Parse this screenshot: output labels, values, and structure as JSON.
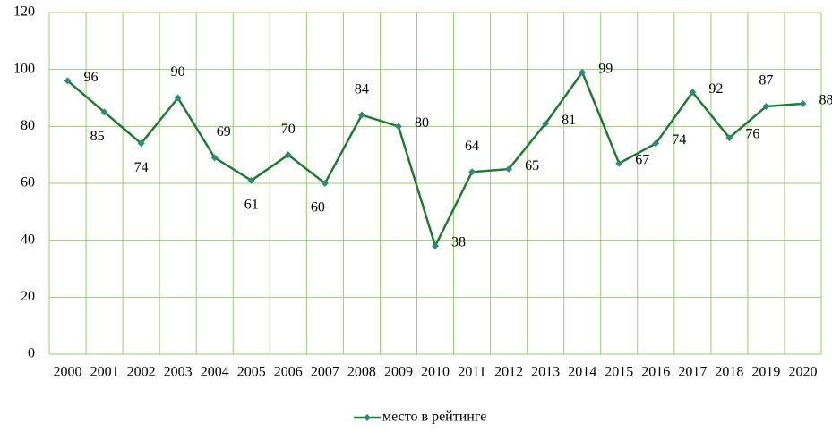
{
  "chart_data": {
    "type": "line",
    "categories": [
      "2000",
      "2001",
      "2002",
      "2003",
      "2004",
      "2005",
      "2006",
      "2007",
      "2008",
      "2009",
      "2010",
      "2011",
      "2012",
      "2013",
      "2014",
      "2015",
      "2016",
      "2017",
      "2018",
      "2019",
      "2020"
    ],
    "series": [
      {
        "name": "место в рейтинге",
        "color": "#1f7a32",
        "marker_color": "#2e8b7a",
        "values": [
          96,
          85,
          74,
          90,
          69,
          61,
          70,
          60,
          84,
          80,
          38,
          64,
          65,
          81,
          99,
          67,
          74,
          92,
          76,
          87,
          88
        ]
      }
    ],
    "ylim": [
      0,
      120
    ],
    "yticks": [
      0,
      20,
      40,
      60,
      80,
      100,
      120
    ],
    "grid": true,
    "legend": "bottom"
  }
}
